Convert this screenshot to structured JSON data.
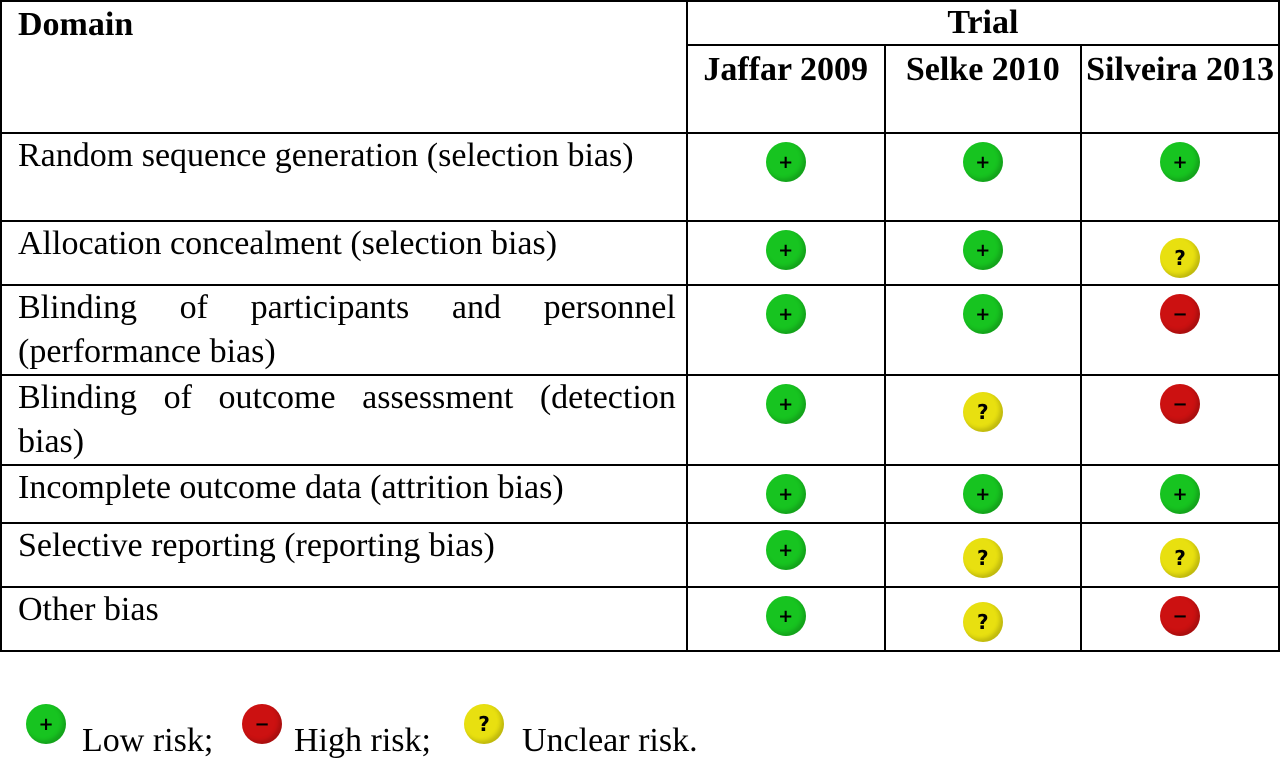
{
  "table": {
    "domain_header": "Domain",
    "trial_header": "Trial",
    "studies": [
      "Jaffar 2009",
      "Selke 2010",
      "Silveira 2013"
    ],
    "rows": [
      {
        "label": "Random sequence generation (selection bias)",
        "ratings": [
          "low",
          "low",
          "low"
        ]
      },
      {
        "label": "Allocation concealment (selection bias)",
        "ratings": [
          "low",
          "low",
          "unclear"
        ]
      },
      {
        "label": "Blinding of participants and personnel (performance bias)",
        "ratings": [
          "low",
          "low",
          "high"
        ]
      },
      {
        "label": "Blinding of outcome assessment (detection bias)",
        "ratings": [
          "low",
          "unclear",
          "high"
        ]
      },
      {
        "label": "Incomplete outcome data (attrition bias)",
        "ratings": [
          "low",
          "low",
          "low"
        ]
      },
      {
        "label": "Selective reporting (reporting bias)",
        "ratings": [
          "low",
          "unclear",
          "unclear"
        ]
      },
      {
        "label": "Other bias",
        "ratings": [
          "low",
          "unclear",
          "high"
        ]
      }
    ]
  },
  "symbols": {
    "low": "+",
    "high": "−",
    "unclear": "?"
  },
  "legend": {
    "low_label": "Low risk;",
    "high_label": "High risk;",
    "unclear_label": "Unclear risk."
  },
  "colors": {
    "low": "#17c420",
    "high": "#cc1111",
    "unclear": "#e8e010"
  }
}
